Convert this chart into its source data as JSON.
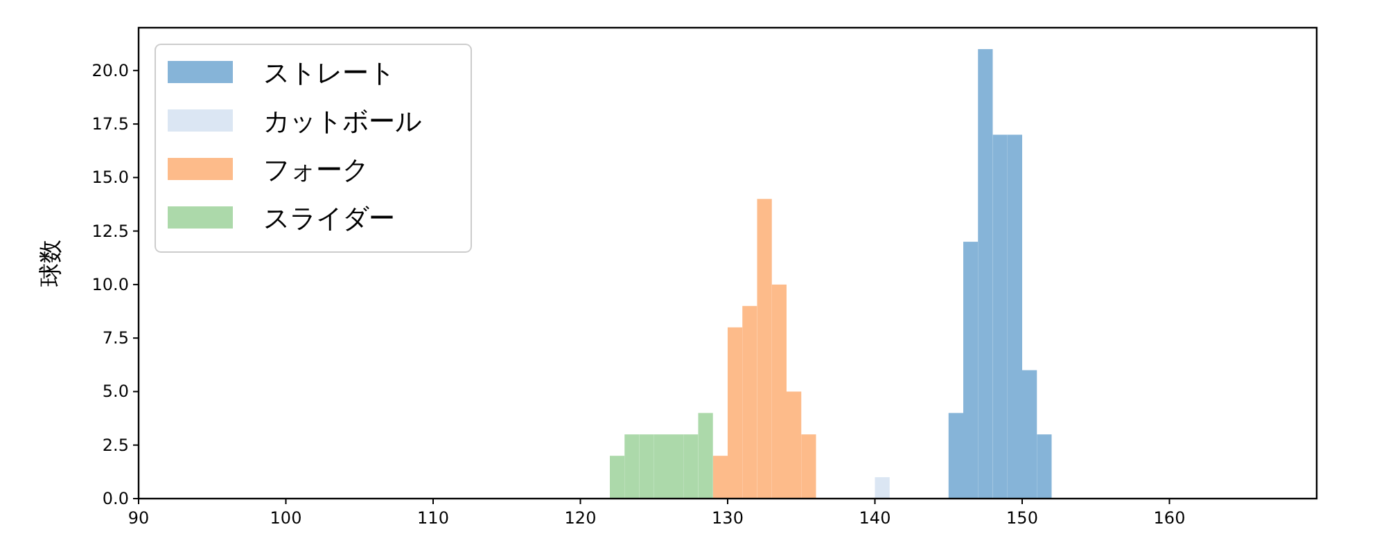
{
  "chart_data": {
    "type": "histogram",
    "ylabel": "球数",
    "bins": [
      122,
      123,
      124,
      125,
      126,
      127,
      128,
      129,
      130,
      131,
      132,
      133,
      134,
      135,
      136,
      137,
      138,
      139,
      140,
      141,
      142,
      143,
      144,
      145,
      146,
      147,
      148,
      149,
      150,
      151,
      152
    ],
    "series": [
      {
        "name": "ストレート",
        "color": "#86b4d8",
        "values": [
          0,
          0,
          0,
          0,
          0,
          0,
          0,
          0,
          0,
          0,
          0,
          0,
          0,
          0,
          0,
          0,
          0,
          0,
          0,
          0,
          0,
          0,
          0,
          4,
          12,
          21,
          17,
          17,
          6,
          3
        ]
      },
      {
        "name": "カットボール",
        "color": "#dbe6f3",
        "values": [
          0,
          0,
          0,
          0,
          0,
          0,
          0,
          0,
          0,
          0,
          0,
          0,
          0,
          0,
          0,
          0,
          0,
          0,
          1,
          0,
          0,
          0,
          0,
          0,
          0,
          0,
          0,
          0,
          0,
          0
        ]
      },
      {
        "name": "フォーク",
        "color": "#fdbb8a",
        "values": [
          0,
          0,
          0,
          0,
          0,
          0,
          0,
          2,
          8,
          9,
          14,
          10,
          5,
          3,
          0,
          0,
          0,
          0,
          0,
          0,
          0,
          0,
          0,
          0,
          0,
          0,
          0,
          0,
          0,
          0
        ]
      },
      {
        "name": "スライダー",
        "color": "#acd9aa",
        "values": [
          2,
          3,
          3,
          3,
          3,
          3,
          4,
          0,
          0,
          0,
          0,
          0,
          0,
          0,
          0,
          0,
          0,
          0,
          0,
          0,
          0,
          0,
          0,
          0,
          0,
          0,
          0,
          0,
          0,
          0
        ]
      }
    ],
    "xlim": [
      90,
      170
    ],
    "xticks": [
      90,
      100,
      110,
      120,
      130,
      140,
      150,
      160
    ],
    "ylim": [
      0,
      22
    ],
    "yticks": [
      {
        "value": 0,
        "label": "0.0"
      },
      {
        "value": 2.5,
        "label": "2.5"
      },
      {
        "value": 5,
        "label": "5.0"
      },
      {
        "value": 7.5,
        "label": "7.5"
      },
      {
        "value": 10,
        "label": "10.0"
      },
      {
        "value": 12.5,
        "label": "12.5"
      },
      {
        "value": 15,
        "label": "15.0"
      },
      {
        "value": 17.5,
        "label": "17.5"
      },
      {
        "value": 20,
        "label": "20.0"
      }
    ],
    "legend": "top left",
    "grid": false
  }
}
